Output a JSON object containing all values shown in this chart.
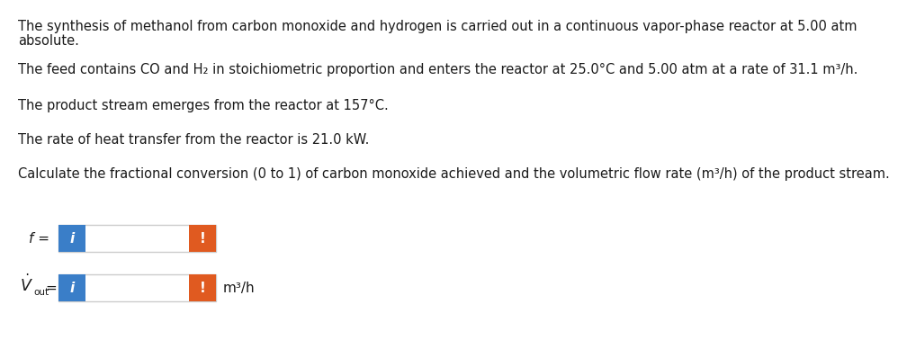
{
  "line1a": "The synthesis of methanol from carbon monoxide and hydrogen is carried out in a continuous vapor-phase reactor at 5.00 atm",
  "line1b": "absolute.",
  "line2": "The feed contains CO and H₂ in stoichiometric proportion and enters the reactor at 25.0°C and 5.00 atm at a rate of 31.1 m³/h.",
  "line3": "The product stream emerges from the reactor at 157°C.",
  "line4": "The rate of heat transfer from the reactor is 21.0 kW.",
  "line5": "Calculate the fractional conversion (0 to 1) of carbon monoxide achieved and the volumetric flow rate (m³/h) of the product stream.",
  "bg_color": "#ffffff",
  "text_color": "#1a1a1a",
  "font_size": 10.5,
  "blue_color": "#3a7ec8",
  "orange_color": "#e05a20",
  "unit_label": "m³/h"
}
